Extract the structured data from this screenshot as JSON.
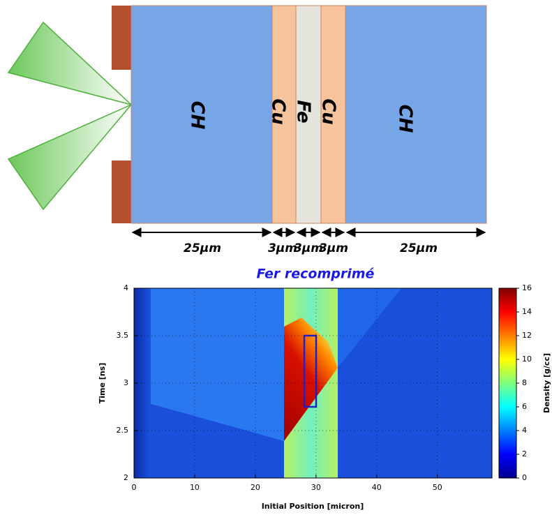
{
  "diagram": {
    "layers": [
      "CH",
      "Cu",
      "Fe",
      "Cu",
      "CH"
    ],
    "thicknesses": [
      "25µm",
      "3µm",
      "3µm",
      "3µm",
      "25µm"
    ]
  },
  "chart_data": {
    "type": "heatmap",
    "title": "Fer recomprimé",
    "x_label": "Initial Position [micron]",
    "y_label": "Time [ns]",
    "xlim": [
      0,
      59
    ],
    "xticks": [
      0,
      10,
      20,
      30,
      40,
      50
    ],
    "ylim": [
      2,
      4
    ],
    "yticks": [
      2,
      2.5,
      3,
      3.5,
      4
    ],
    "grid": true,
    "colorbar": {
      "label": "Density [g/cc]",
      "lim": [
        0,
        16
      ],
      "ticks": [
        0,
        2,
        4,
        6,
        8,
        10,
        12,
        14,
        16
      ]
    }
  }
}
